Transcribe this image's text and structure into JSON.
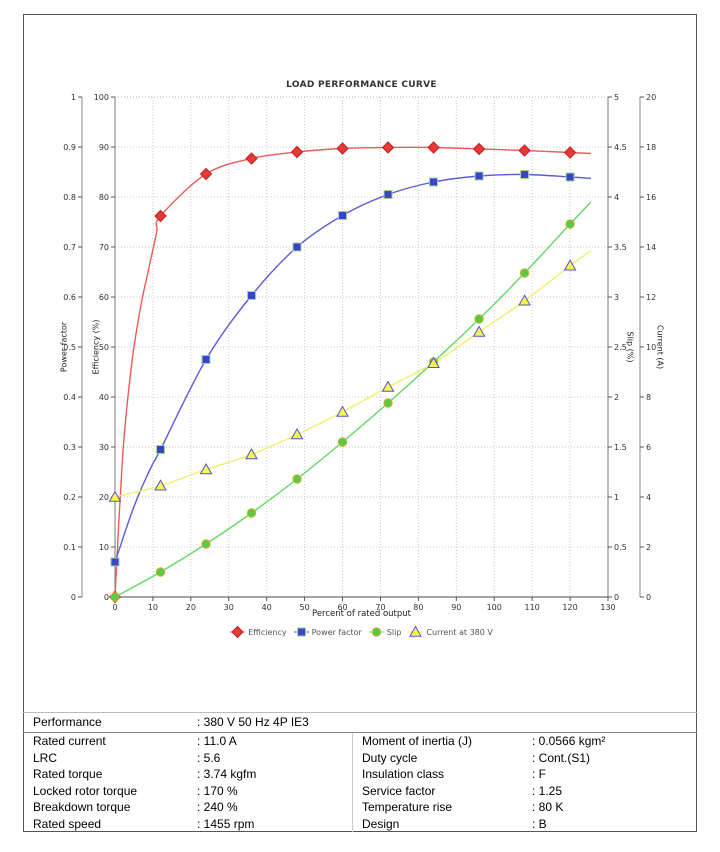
{
  "chart_data": {
    "type": "line",
    "title": "LOAD PERFORMANCE CURVE",
    "grid": "dotted",
    "legend_position": "bottom",
    "x_axis": {
      "label": "Percent of rated output",
      "min": 0,
      "max": 130,
      "tick_step": 10
    },
    "y_axes": [
      {
        "id": "power_factor",
        "label": "Power factor",
        "side": "left",
        "offset": 33,
        "min": 0,
        "max": 1,
        "tick_step": 0.1
      },
      {
        "id": "efficiency",
        "label": "Efficiency (%)",
        "side": "left",
        "offset": 0,
        "min": 0,
        "max": 100,
        "tick_step": 10
      },
      {
        "id": "slip",
        "label": "Slip (%)",
        "side": "right",
        "offset": 0,
        "min": 0,
        "max": 5,
        "tick_step": 0.5
      },
      {
        "id": "current",
        "label": "Current (A)",
        "side": "right",
        "offset": 32,
        "min": 0,
        "max": 20,
        "tick_step": 2
      }
    ],
    "x": [
      0,
      12,
      24,
      36,
      48,
      60,
      72,
      84,
      96,
      108,
      120
    ],
    "series": [
      {
        "name": "Efficiency",
        "axis": "efficiency",
        "marker": "diamond",
        "line_color": "#ee5a5a",
        "marker_fill": "#e83838",
        "marker_stroke": "#c02020",
        "values": [
          0,
          76.2,
          84.6,
          87.7,
          89.0,
          89.7,
          89.9,
          89.9,
          89.6,
          89.3,
          88.9
        ],
        "curve_lead_in": [
          [
            1,
            15
          ],
          [
            2,
            28
          ],
          [
            3,
            37
          ],
          [
            4,
            44
          ],
          [
            5,
            50
          ],
          [
            7,
            59
          ],
          [
            9,
            66
          ],
          [
            11,
            73
          ]
        ],
        "curve_tail": [
          [
            125.5,
            88.7
          ]
        ]
      },
      {
        "name": "Power factor",
        "axis": "power_factor",
        "marker": "square",
        "line_color": "#5c5cd8",
        "marker_fill": "#3a44c4",
        "marker_stroke": "#9fd49f",
        "values": [
          0.07,
          0.295,
          0.475,
          0.603,
          0.7,
          0.763,
          0.805,
          0.83,
          0.842,
          0.845,
          0.84
        ],
        "curve_lead_in": [
          [
            2,
            0.115
          ],
          [
            4,
            0.16
          ],
          [
            6,
            0.2
          ],
          [
            8,
            0.235
          ],
          [
            10,
            0.267
          ]
        ],
        "curve_tail": [
          [
            125.5,
            0.837
          ]
        ]
      },
      {
        "name": "Slip",
        "axis": "slip",
        "marker": "circle",
        "line_color": "#63d963",
        "marker_fill": "#55cc44",
        "marker_stroke": "#dfaa33",
        "values": [
          0,
          0.25,
          0.53,
          0.84,
          1.18,
          1.55,
          1.94,
          2.35,
          2.78,
          3.24,
          3.73
        ],
        "curve_lead_in": [],
        "curve_tail": [
          [
            125.5,
            3.95
          ]
        ]
      },
      {
        "name": "Current at 380 V",
        "axis": "current",
        "marker": "triangle",
        "line_color": "#f2ee6e",
        "marker_fill": "#f6f64e",
        "marker_stroke": "#5555cc",
        "values": [
          4.0,
          4.45,
          5.1,
          5.7,
          6.5,
          7.4,
          8.4,
          9.35,
          10.6,
          11.85,
          13.25
        ],
        "curve_lead_in": [],
        "curve_tail": [
          [
            125.5,
            13.85
          ]
        ]
      }
    ]
  },
  "table": {
    "header": {
      "label": "Performance",
      "value": ": 380 V 50 Hz 4P IE3"
    },
    "left_rows": [
      {
        "label": "Rated current",
        "value": ": 11.0 A"
      },
      {
        "label": "LRC",
        "value": ": 5.6"
      },
      {
        "label": "Rated torque",
        "value": ": 3.74 kgfm"
      },
      {
        "label": "Locked rotor torque",
        "value": ": 170 %"
      },
      {
        "label": "Breakdown torque",
        "value": ": 240 %"
      },
      {
        "label": "Rated speed",
        "value": ": 1455 rpm"
      }
    ],
    "right_rows": [
      {
        "label": "Moment of inertia (J)",
        "value": ": 0.0566 kgm²"
      },
      {
        "label": "Duty cycle",
        "value": ": Cont.(S1)"
      },
      {
        "label": "Insulation class",
        "value": ": F"
      },
      {
        "label": "Service factor",
        "value": ": 1.25"
      },
      {
        "label": "Temperature rise",
        "value": ": 80 K"
      },
      {
        "label": "Design",
        "value": ": B"
      }
    ]
  }
}
